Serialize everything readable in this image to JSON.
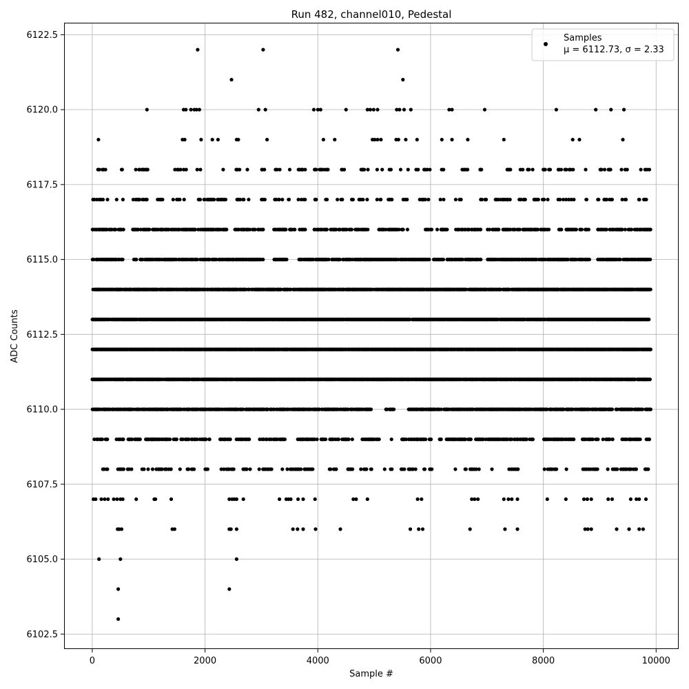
{
  "chart_data": {
    "type": "scatter",
    "title": "Run 482, channel010, Pedestal",
    "xlabel": "Sample #",
    "ylabel": "ADC Counts",
    "xlim": [
      -500,
      10400
    ],
    "ylim": [
      6102.0,
      6122.9
    ],
    "xticks": [
      0,
      2000,
      4000,
      6000,
      8000,
      10000
    ],
    "xtick_labels": [
      "0",
      "2000",
      "4000",
      "6000",
      "8000",
      "10000"
    ],
    "yticks": [
      6102.5,
      6105.0,
      6107.5,
      6110.0,
      6112.5,
      6115.0,
      6117.5,
      6120.0,
      6122.5
    ],
    "ytick_labels": [
      "6102.5",
      "6105.0",
      "6107.5",
      "6110.0",
      "6112.5",
      "6115.0",
      "6117.5",
      "6120.0",
      "6122.5"
    ],
    "grid": true,
    "legend_position": "top-right",
    "marker_color": "#000000",
    "series": [
      {
        "name": "Samples",
        "label_line2": "μ = 6112.73, σ = 2.33",
        "mean": 6112.73,
        "std": 2.33,
        "x_range": [
          0,
          9900
        ],
        "sparse_points": [
          {
            "x": 1870,
            "y": 6122
          },
          {
            "x": 3030,
            "y": 6122
          },
          {
            "x": 5420,
            "y": 6122
          },
          {
            "x": 2470,
            "y": 6121
          },
          {
            "x": 5510,
            "y": 6121
          },
          {
            "x": 970,
            "y": 6120
          },
          {
            "x": 1620,
            "y": 6120
          },
          {
            "x": 1660,
            "y": 6120
          },
          {
            "x": 1750,
            "y": 6120
          },
          {
            "x": 1810,
            "y": 6120
          },
          {
            "x": 1850,
            "y": 6120
          },
          {
            "x": 1900,
            "y": 6120
          },
          {
            "x": 2950,
            "y": 6120
          },
          {
            "x": 3070,
            "y": 6120
          },
          {
            "x": 3930,
            "y": 6120
          },
          {
            "x": 4000,
            "y": 6120
          },
          {
            "x": 4050,
            "y": 6120
          },
          {
            "x": 4500,
            "y": 6120
          },
          {
            "x": 4880,
            "y": 6120
          },
          {
            "x": 4930,
            "y": 6120
          },
          {
            "x": 4990,
            "y": 6120
          },
          {
            "x": 5060,
            "y": 6120
          },
          {
            "x": 5400,
            "y": 6120
          },
          {
            "x": 5450,
            "y": 6120
          },
          {
            "x": 5530,
            "y": 6120
          },
          {
            "x": 5650,
            "y": 6120
          },
          {
            "x": 6330,
            "y": 6120
          },
          {
            "x": 6380,
            "y": 6120
          },
          {
            "x": 6960,
            "y": 6120
          },
          {
            "x": 8230,
            "y": 6120
          },
          {
            "x": 8930,
            "y": 6120
          },
          {
            "x": 9200,
            "y": 6120
          },
          {
            "x": 9430,
            "y": 6120
          },
          {
            "x": 110,
            "y": 6119
          },
          {
            "x": 1600,
            "y": 6119
          },
          {
            "x": 1640,
            "y": 6119
          },
          {
            "x": 1930,
            "y": 6119
          },
          {
            "x": 2130,
            "y": 6119
          },
          {
            "x": 2230,
            "y": 6119
          },
          {
            "x": 2560,
            "y": 6119
          },
          {
            "x": 2590,
            "y": 6119
          },
          {
            "x": 3100,
            "y": 6119
          },
          {
            "x": 4100,
            "y": 6119
          },
          {
            "x": 4300,
            "y": 6119
          },
          {
            "x": 4970,
            "y": 6119
          },
          {
            "x": 5010,
            "y": 6119
          },
          {
            "x": 5060,
            "y": 6119
          },
          {
            "x": 5120,
            "y": 6119
          },
          {
            "x": 5390,
            "y": 6119
          },
          {
            "x": 5430,
            "y": 6119
          },
          {
            "x": 5560,
            "y": 6119
          },
          {
            "x": 5760,
            "y": 6119
          },
          {
            "x": 6200,
            "y": 6119
          },
          {
            "x": 6380,
            "y": 6119
          },
          {
            "x": 6660,
            "y": 6119
          },
          {
            "x": 7300,
            "y": 6119
          },
          {
            "x": 8520,
            "y": 6119
          },
          {
            "x": 8640,
            "y": 6119
          },
          {
            "x": 9410,
            "y": 6119
          },
          {
            "x": 20,
            "y": 6107
          },
          {
            "x": 60,
            "y": 6107
          },
          {
            "x": 160,
            "y": 6107
          },
          {
            "x": 220,
            "y": 6107
          },
          {
            "x": 280,
            "y": 6107
          },
          {
            "x": 380,
            "y": 6107
          },
          {
            "x": 440,
            "y": 6107
          },
          {
            "x": 500,
            "y": 6107
          },
          {
            "x": 540,
            "y": 6107
          },
          {
            "x": 780,
            "y": 6107
          },
          {
            "x": 1100,
            "y": 6107
          },
          {
            "x": 1120,
            "y": 6107
          },
          {
            "x": 1400,
            "y": 6107
          },
          {
            "x": 2430,
            "y": 6107
          },
          {
            "x": 2480,
            "y": 6107
          },
          {
            "x": 2520,
            "y": 6107
          },
          {
            "x": 2560,
            "y": 6107
          },
          {
            "x": 2680,
            "y": 6107
          },
          {
            "x": 3320,
            "y": 6107
          },
          {
            "x": 3440,
            "y": 6107
          },
          {
            "x": 3480,
            "y": 6107
          },
          {
            "x": 3520,
            "y": 6107
          },
          {
            "x": 3650,
            "y": 6107
          },
          {
            "x": 3740,
            "y": 6107
          },
          {
            "x": 3950,
            "y": 6107
          },
          {
            "x": 4630,
            "y": 6107
          },
          {
            "x": 4680,
            "y": 6107
          },
          {
            "x": 4880,
            "y": 6107
          },
          {
            "x": 5770,
            "y": 6107
          },
          {
            "x": 5840,
            "y": 6107
          },
          {
            "x": 6730,
            "y": 6107
          },
          {
            "x": 6780,
            "y": 6107
          },
          {
            "x": 6840,
            "y": 6107
          },
          {
            "x": 7300,
            "y": 6107
          },
          {
            "x": 7380,
            "y": 6107
          },
          {
            "x": 7440,
            "y": 6107
          },
          {
            "x": 7540,
            "y": 6107
          },
          {
            "x": 8070,
            "y": 6107
          },
          {
            "x": 8400,
            "y": 6107
          },
          {
            "x": 8720,
            "y": 6107
          },
          {
            "x": 8780,
            "y": 6107
          },
          {
            "x": 8850,
            "y": 6107
          },
          {
            "x": 9150,
            "y": 6107
          },
          {
            "x": 9220,
            "y": 6107
          },
          {
            "x": 9550,
            "y": 6107
          },
          {
            "x": 9650,
            "y": 6107
          },
          {
            "x": 9700,
            "y": 6107
          },
          {
            "x": 9820,
            "y": 6107
          },
          {
            "x": 450,
            "y": 6106
          },
          {
            "x": 480,
            "y": 6106
          },
          {
            "x": 520,
            "y": 6106
          },
          {
            "x": 1420,
            "y": 6106
          },
          {
            "x": 1460,
            "y": 6106
          },
          {
            "x": 2430,
            "y": 6106
          },
          {
            "x": 2460,
            "y": 6106
          },
          {
            "x": 2560,
            "y": 6106
          },
          {
            "x": 3560,
            "y": 6106
          },
          {
            "x": 3640,
            "y": 6106
          },
          {
            "x": 3740,
            "y": 6106
          },
          {
            "x": 3960,
            "y": 6106
          },
          {
            "x": 4400,
            "y": 6106
          },
          {
            "x": 5640,
            "y": 6106
          },
          {
            "x": 5790,
            "y": 6106
          },
          {
            "x": 5860,
            "y": 6106
          },
          {
            "x": 6700,
            "y": 6106
          },
          {
            "x": 7320,
            "y": 6106
          },
          {
            "x": 7540,
            "y": 6106
          },
          {
            "x": 8740,
            "y": 6106
          },
          {
            "x": 8790,
            "y": 6106
          },
          {
            "x": 8850,
            "y": 6106
          },
          {
            "x": 9300,
            "y": 6106
          },
          {
            "x": 9520,
            "y": 6106
          },
          {
            "x": 9700,
            "y": 6106
          },
          {
            "x": 9770,
            "y": 6106
          },
          {
            "x": 120,
            "y": 6105
          },
          {
            "x": 500,
            "y": 6105
          },
          {
            "x": 2560,
            "y": 6105
          },
          {
            "x": 460,
            "y": 6104
          },
          {
            "x": 2430,
            "y": 6104
          },
          {
            "x": 460,
            "y": 6103
          }
        ],
        "dense_levels": [
          {
            "y": 6118,
            "density": 0.22
          },
          {
            "y": 6117,
            "density": 0.32
          },
          {
            "y": 6116,
            "density": 0.52
          },
          {
            "y": 6115,
            "density": 0.62
          },
          {
            "y": 6114,
            "density": 0.8
          },
          {
            "y": 6113,
            "density": 0.92
          },
          {
            "y": 6112,
            "density": 0.95
          },
          {
            "y": 6111,
            "density": 0.88
          },
          {
            "y": 6110,
            "density": 0.68
          },
          {
            "y": 6109,
            "density": 0.5
          },
          {
            "y": 6108,
            "density": 0.3
          }
        ],
        "dense_gaps": [
          {
            "y": 6116,
            "ranges": [
              [
                5700,
                5900
              ],
              [
                6900,
                7000
              ]
            ]
          },
          {
            "y": 6115,
            "ranges": [
              [
                3450,
                3650
              ],
              [
                6900,
                7000
              ]
            ]
          },
          {
            "y": 6110,
            "ranges": [
              [
                4950,
                5200
              ],
              [
                5350,
                5600
              ]
            ]
          },
          {
            "y": 6109,
            "ranges": [
              [
                2450,
                2550
              ],
              [
                5150,
                5300
              ]
            ]
          },
          {
            "y": 6108,
            "ranges": [
              [
                2050,
                2150
              ],
              [
                4000,
                4200
              ],
              [
                6150,
                6400
              ],
              [
                7600,
                8000
              ],
              [
                8450,
                8700
              ]
            ]
          }
        ]
      }
    ]
  }
}
